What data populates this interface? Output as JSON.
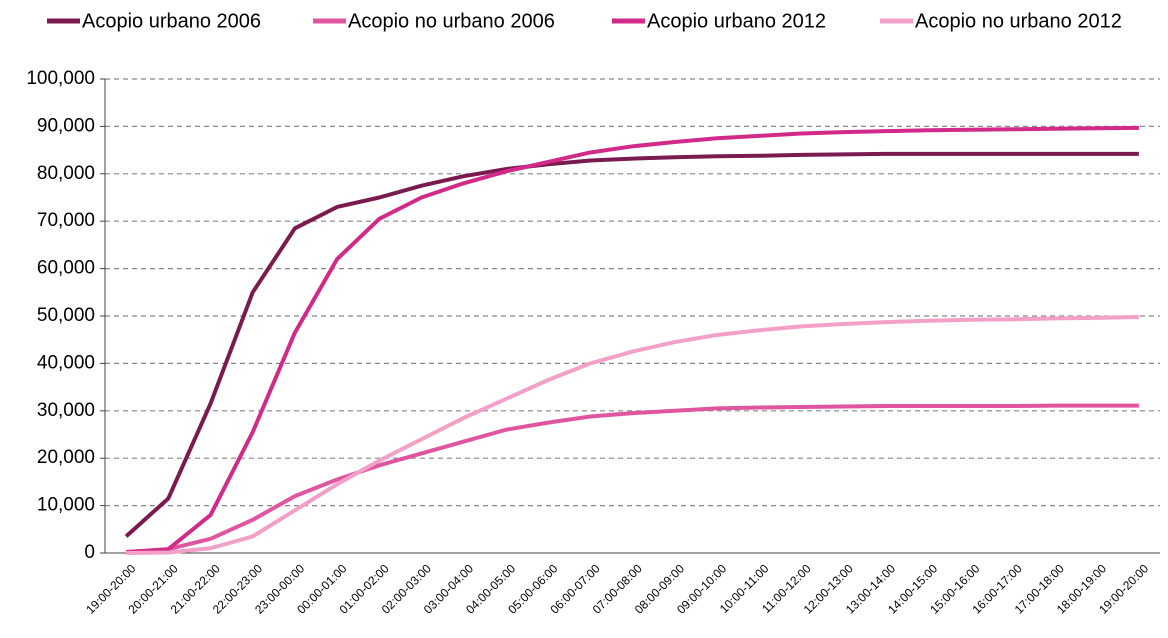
{
  "chart_data": {
    "type": "line",
    "categories": [
      "19:00-20:00",
      "20:00-21:00",
      "21:00-22:00",
      "22:00-23:00",
      "23:00-00:00",
      "00:00-01:00",
      "01:00-02:00",
      "02:00-03:00",
      "03:00-04:00",
      "04:00-05:00",
      "05:00-06:00",
      "06:00-07:00",
      "07:00-08:00",
      "08:00-09:00",
      "09:00-10:00",
      "10:00-11:00",
      "11:00-12:00",
      "12:00-13:00",
      "13:00-14:00",
      "14:00-15:00",
      "15:00-16:00",
      "16:00-17:00",
      "17:00-18:00",
      "18:00-19:00",
      "19:00-20:00"
    ],
    "series": [
      {
        "name": "Acopio urbano 2006",
        "color": "#7a1a4f",
        "values": [
          3500,
          11500,
          31500,
          55000,
          68500,
          73000,
          75000,
          77500,
          79500,
          81000,
          82000,
          82800,
          83200,
          83500,
          83700,
          83800,
          84000,
          84100,
          84200,
          84200,
          84200,
          84200,
          84200,
          84200,
          84200
        ]
      },
      {
        "name": "Acopio no urbano 2006",
        "color": "#e0559f",
        "values": [
          200,
          800,
          3000,
          7000,
          12000,
          15500,
          18500,
          21000,
          23500,
          26000,
          27500,
          28800,
          29500,
          30000,
          30500,
          30700,
          30800,
          30900,
          31000,
          31000,
          31000,
          31000,
          31100,
          31100,
          31100
        ]
      },
      {
        "name": "Acopio urbano 2012",
        "color": "#d12a88",
        "values": [
          200,
          800,
          8000,
          25500,
          46500,
          62000,
          70500,
          75000,
          78000,
          80500,
          82500,
          84500,
          85800,
          86700,
          87500,
          88000,
          88500,
          88800,
          89000,
          89200,
          89300,
          89400,
          89500,
          89600,
          89700
        ]
      },
      {
        "name": "Acopio no urbano 2012",
        "color": "#f2a0c8",
        "values": [
          0,
          100,
          1000,
          3500,
          9000,
          14500,
          19500,
          24000,
          28500,
          32500,
          36500,
          40000,
          42500,
          44500,
          46000,
          47000,
          47800,
          48300,
          48700,
          49000,
          49200,
          49300,
          49500,
          49600,
          49800
        ]
      }
    ],
    "ylim": [
      0,
      100000
    ],
    "yticks": [
      0,
      {
        "value": 10000,
        "label": "10,000"
      },
      {
        "value": 20000,
        "label": "20,000"
      },
      {
        "value": 30000,
        "label": "30,000"
      },
      {
        "value": 40000,
        "label": "40,000"
      },
      {
        "value": 50000,
        "label": "50,000"
      },
      {
        "value": 60000,
        "label": "60,000"
      },
      {
        "value": 70000,
        "label": "70,000"
      },
      {
        "value": 80000,
        "label": "80,000"
      },
      {
        "value": 90000,
        "label": "90,000"
      },
      {
        "value": 100000,
        "label": "100,000"
      }
    ],
    "grid": true,
    "legend": "top"
  }
}
